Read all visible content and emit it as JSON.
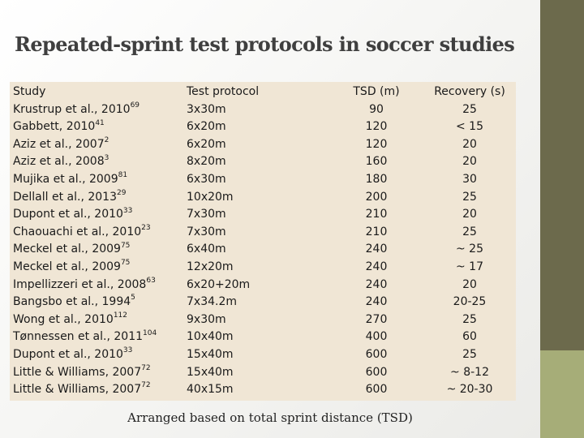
{
  "title": "Repeated-sprint test protocols in soccer studies",
  "headers": {
    "study": "Study",
    "protocol": "Test protocol",
    "tsd": "TSD (m)",
    "recovery": "Recovery (s)"
  },
  "rows": [
    {
      "study": "Krustrup et al., 2010",
      "ref": "69",
      "protocol": "3x30m",
      "tsd": "90",
      "recovery": "25"
    },
    {
      "study": "Gabbett, 2010",
      "ref": "41",
      "protocol": "6x20m",
      "tsd": "120",
      "recovery": "< 15"
    },
    {
      "study": "Aziz et al., 2007",
      "ref": "2",
      "protocol": "6x20m",
      "tsd": "120",
      "recovery": "20"
    },
    {
      "study": "Aziz et al., 2008",
      "ref": "3",
      "protocol": "8x20m",
      "tsd": "160",
      "recovery": "20"
    },
    {
      "study": "Mujika et al., 2009",
      "ref": "81",
      "protocol": "6x30m",
      "tsd": "180",
      "recovery": "30"
    },
    {
      "study": "Dellall et al., 2013",
      "ref": "29",
      "protocol": "10x20m",
      "tsd": "200",
      "recovery": "25"
    },
    {
      "study": "Dupont et al., 2010",
      "ref": "33",
      "protocol": "7x30m",
      "tsd": "210",
      "recovery": "20"
    },
    {
      "study": "Chaouachi et al., 2010",
      "ref": "23",
      "protocol": "7x30m",
      "tsd": "210",
      "recovery": "25"
    },
    {
      "study": "Meckel et al., 2009",
      "ref": "75",
      "protocol": "6x40m",
      "tsd": "240",
      "recovery": "~ 25"
    },
    {
      "study": "Meckel et al., 2009",
      "ref": "75",
      "protocol": "12x20m",
      "tsd": "240",
      "recovery": "~ 17"
    },
    {
      "study": "Impellizzeri et al., 2008",
      "ref": "63",
      "protocol": "6x20+20m",
      "tsd": "240",
      "recovery": "20"
    },
    {
      "study": "Bangsbo et al., 1994",
      "ref": "5",
      "protocol": "7x34.2m",
      "tsd": "240",
      "recovery": "20-25"
    },
    {
      "study": "Wong et al., 2010",
      "ref": "112",
      "protocol": "9x30m",
      "tsd": "270",
      "recovery": "25"
    },
    {
      "study": "Tønnessen et al., 2011",
      "ref": "104",
      "protocol": "10x40m",
      "tsd": "400",
      "recovery": "60"
    },
    {
      "study": "Dupont et al., 2010",
      "ref": "33",
      "protocol": "15x40m",
      "tsd": "600",
      "recovery": "25"
    },
    {
      "study": "Little & Williams, 2007",
      "ref": "72",
      "protocol": "15x40m",
      "tsd": "600",
      "recovery": "~ 8-12"
    },
    {
      "study": "Little & Williams, 2007",
      "ref": "72",
      "protocol": "40x15m",
      "tsd": "600",
      "recovery": "~ 20-30"
    }
  ],
  "footer": "Arranged based on total sprint distance (TSD)",
  "colors": {
    "table_background": "#f0e6d5",
    "side_bar_dark": "#6c6a4c",
    "side_bar_light": "#a6ad78"
  }
}
